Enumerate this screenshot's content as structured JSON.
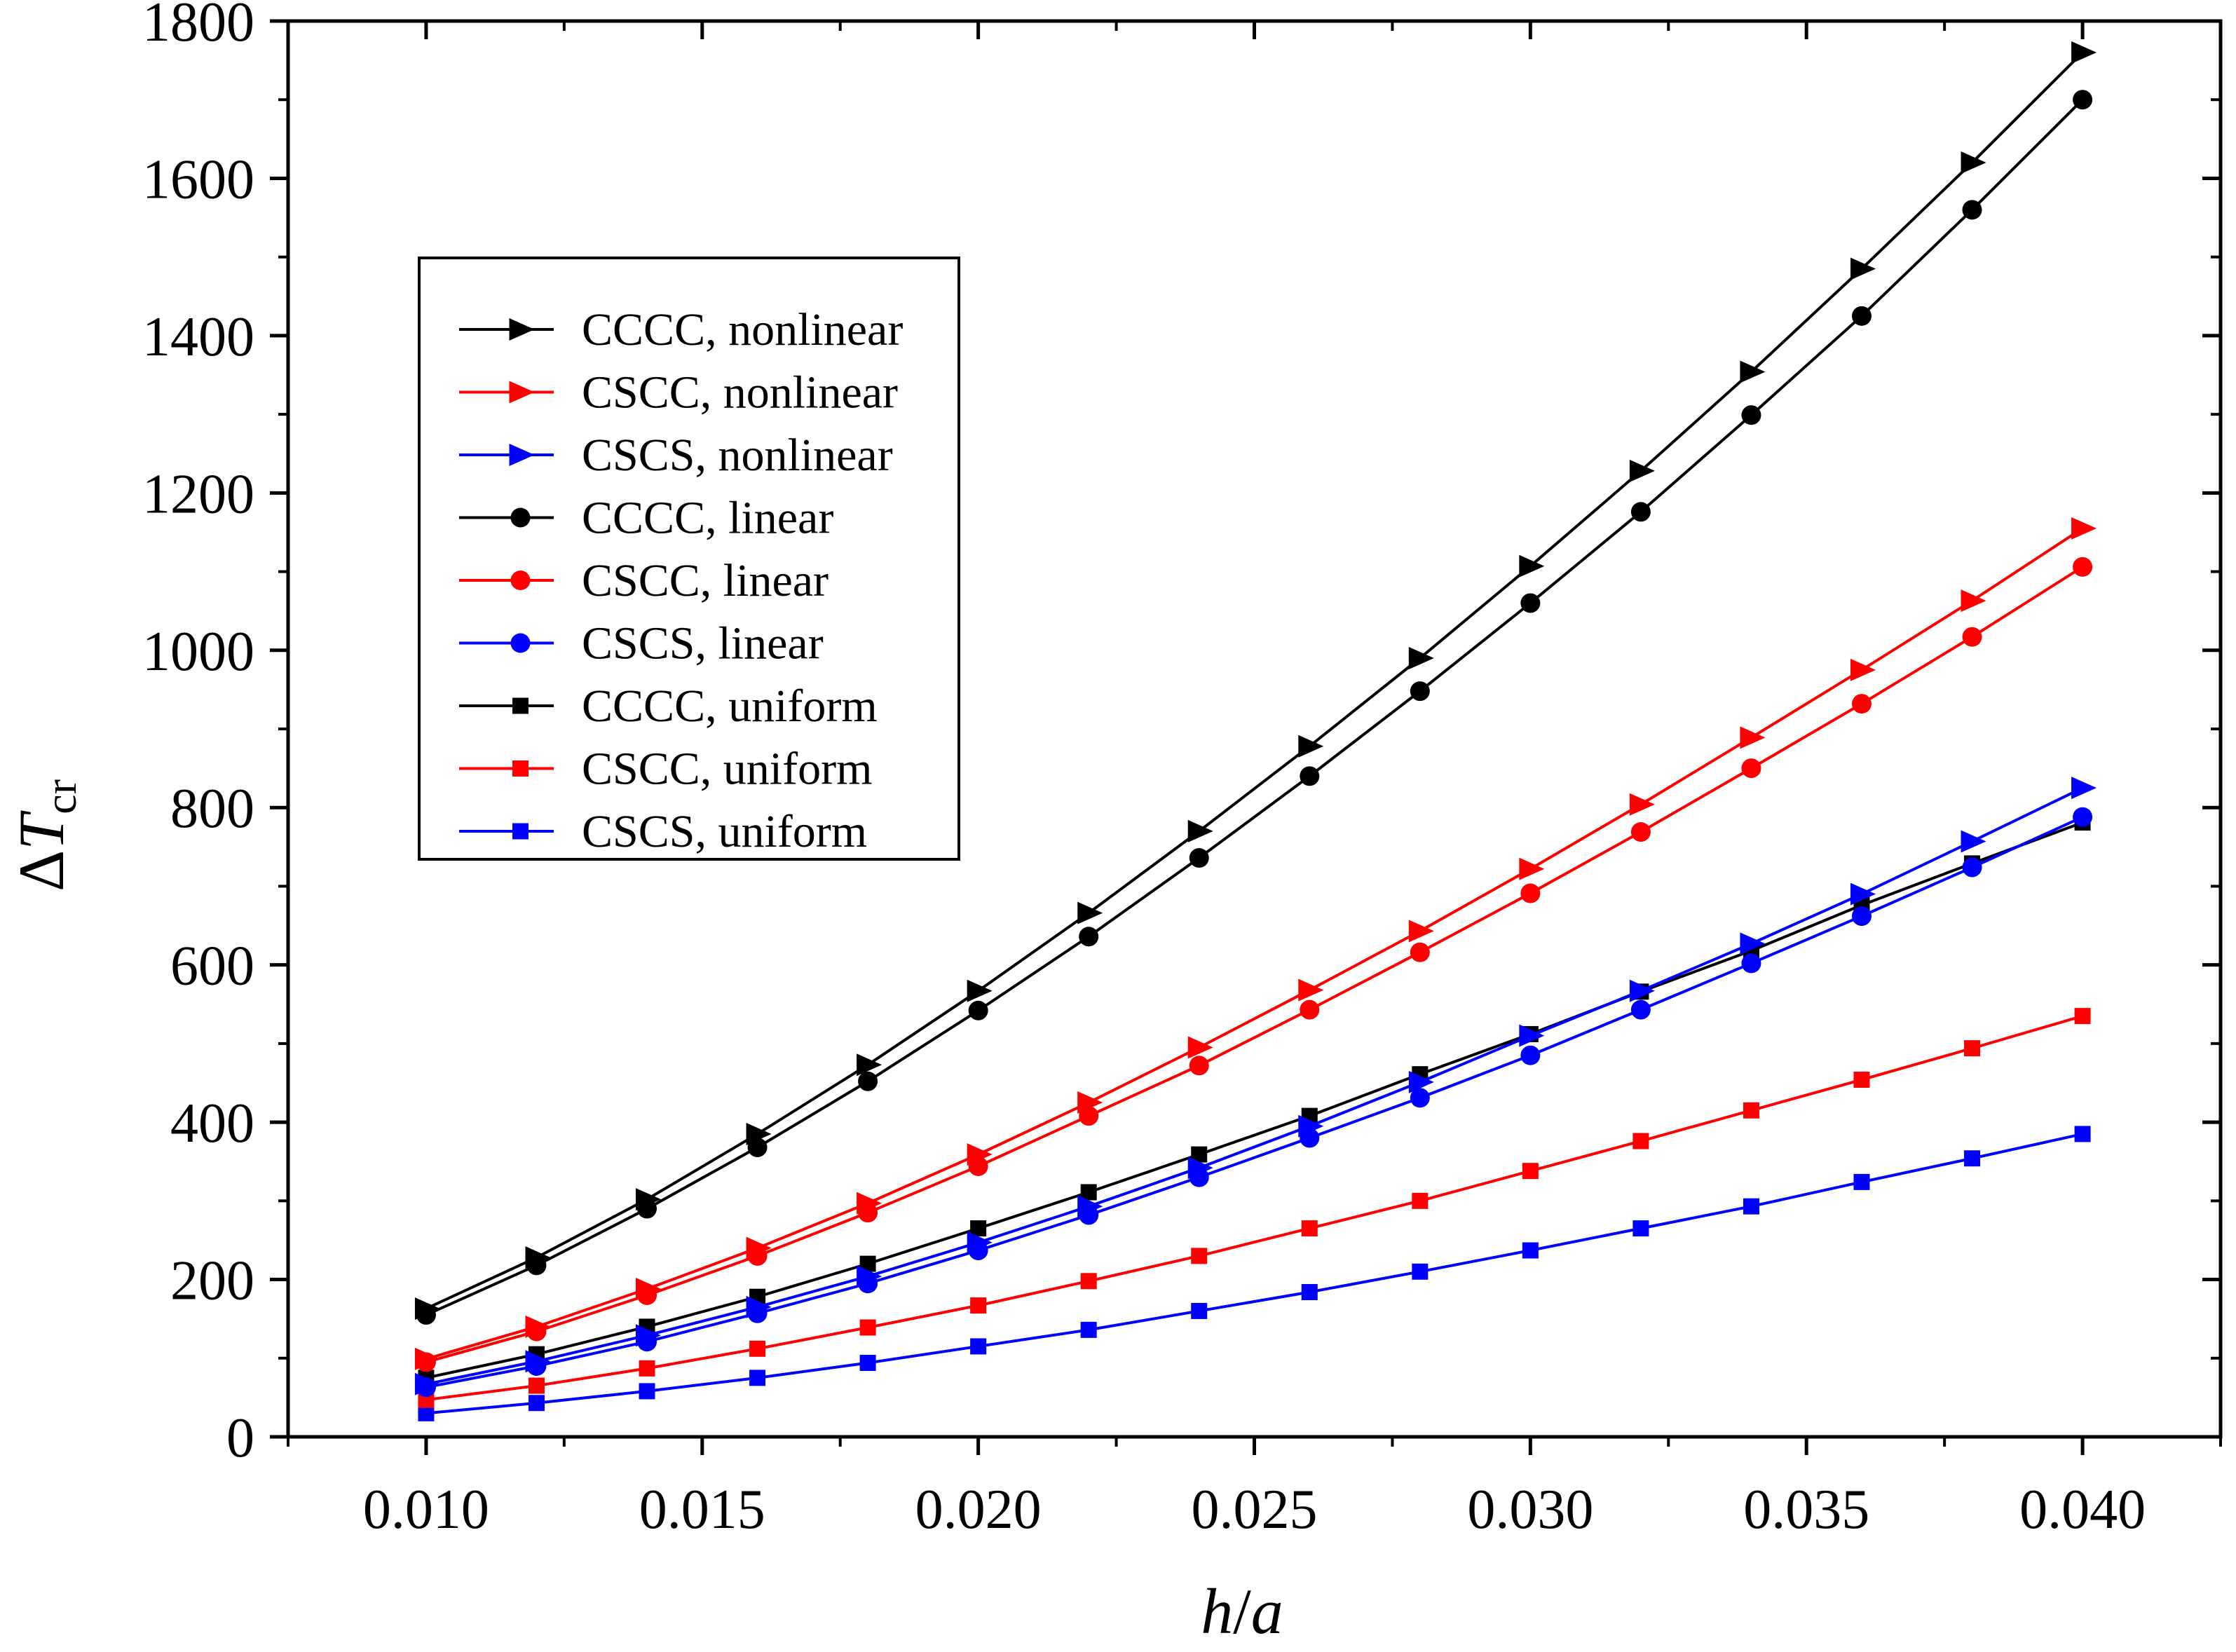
{
  "chart_data": {
    "type": "line",
    "title": "",
    "xlabel": "h/a",
    "ylabel": "ΔT_cr",
    "ylabel_parts": {
      "delta": "Δ",
      "T": "T",
      "sub": "cr"
    },
    "xlabel_parts": {
      "h": "h",
      "slash": "/",
      "a": "a"
    },
    "xlim": [
      0.0075,
      0.0425
    ],
    "ylim": [
      0,
      1800
    ],
    "xticks": [
      0.01,
      0.015,
      0.02,
      0.025,
      0.03,
      0.035,
      0.04
    ],
    "xtick_labels": [
      "0.010",
      "0.015",
      "0.020",
      "0.025",
      "0.030",
      "0.035",
      "0.040"
    ],
    "yticks": [
      0,
      200,
      400,
      600,
      800,
      1000,
      1200,
      1400,
      1600,
      1800
    ],
    "ytick_labels": [
      "0",
      "200",
      "400",
      "600",
      "800",
      "1000",
      "1200",
      "1400",
      "1600",
      "1800"
    ],
    "grid": false,
    "legend_position": "upper-left",
    "x": [
      0.01,
      0.012,
      0.014,
      0.016,
      0.018,
      0.02,
      0.022,
      0.024,
      0.026,
      0.028,
      0.03,
      0.032,
      0.034,
      0.036,
      0.038,
      0.04
    ],
    "series": [
      {
        "name": "CCCC, nonlinear",
        "color": "#000000",
        "marker": "triangle-right",
        "values": [
          163,
          228,
          302,
          385,
          473,
          567,
          666,
          770,
          878,
          990,
          1107,
          1228,
          1354,
          1485,
          1620,
          1760
        ]
      },
      {
        "name": "CSCC, nonlinear",
        "color": "#ff0000",
        "marker": "triangle-right",
        "values": [
          99,
          140,
          188,
          240,
          297,
          359,
          425,
          495,
          568,
          643,
          722,
          804,
          889,
          975,
          1063,
          1155
        ]
      },
      {
        "name": "CSCS, nonlinear",
        "color": "#0000ff",
        "marker": "triangle-right",
        "values": [
          67,
          96,
          129,
          165,
          204,
          247,
          293,
          342,
          395,
          451,
          510,
          567,
          627,
          690,
          757,
          825
        ]
      },
      {
        "name": "CCCC, linear",
        "color": "#000000",
        "marker": "circle",
        "values": [
          155,
          218,
          290,
          368,
          452,
          542,
          636,
          736,
          840,
          948,
          1060,
          1176,
          1299,
          1425,
          1560,
          1700
        ]
      },
      {
        "name": "CSCC, linear",
        "color": "#ff0000",
        "marker": "circle",
        "values": [
          95,
          134,
          180,
          230,
          285,
          344,
          408,
          472,
          543,
          616,
          691,
          769,
          850,
          932,
          1017,
          1106
        ]
      },
      {
        "name": "CSCS, linear",
        "color": "#0000ff",
        "marker": "circle",
        "values": [
          63,
          90,
          121,
          157,
          195,
          237,
          282,
          330,
          380,
          431,
          485,
          543,
          602,
          662,
          724,
          788
        ]
      },
      {
        "name": "CCCC, uniform",
        "color": "#000000",
        "marker": "square",
        "values": [
          75,
          105,
          140,
          178,
          220,
          265,
          311,
          359,
          408,
          461,
          512,
          566,
          618,
          676,
          729,
          781
        ]
      },
      {
        "name": "CSCC, uniform",
        "color": "#ff0000",
        "marker": "square",
        "values": [
          47,
          65,
          87,
          112,
          139,
          167,
          198,
          230,
          265,
          300,
          338,
          376,
          415,
          454,
          494,
          535
        ]
      },
      {
        "name": "CSCS, uniform",
        "color": "#0000ff",
        "marker": "square",
        "values": [
          30,
          43,
          58,
          75,
          94,
          115,
          136,
          160,
          184,
          210,
          237,
          265,
          293,
          324,
          354,
          385
        ]
      }
    ]
  }
}
